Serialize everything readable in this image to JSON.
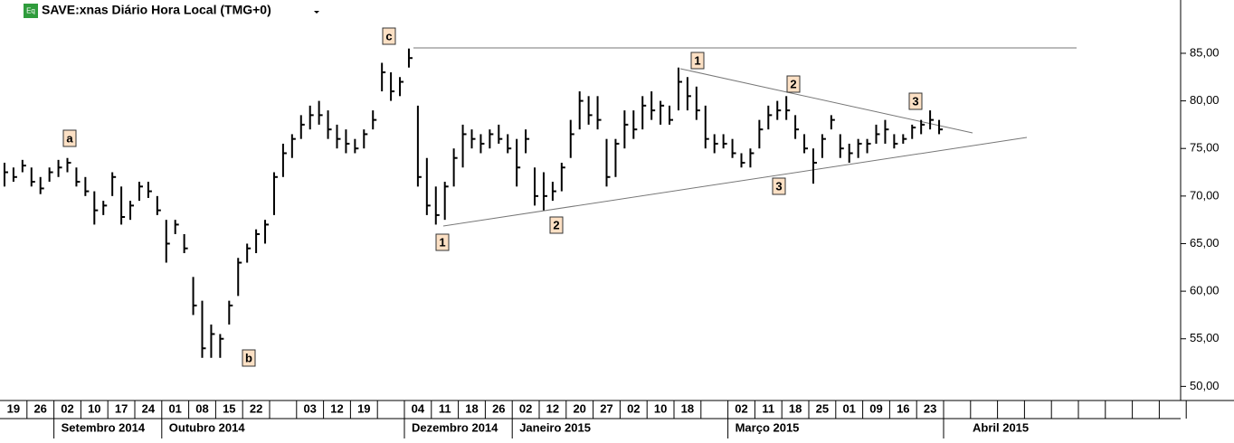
{
  "chart_data": {
    "type": "ohlc",
    "title": "SAVE:xnas Diário Hora Local (TMG+0)",
    "icon": "Eq",
    "weeks": [
      "19",
      "26",
      "02",
      "10",
      "17",
      "24",
      "01",
      "08",
      "15",
      "22",
      null,
      "03",
      "12",
      "19",
      null,
      "04",
      "11",
      "18",
      "26",
      "02",
      "12",
      "20",
      "27",
      "02",
      "10",
      "18",
      null,
      "02",
      "11",
      "18",
      "25",
      "01",
      "09",
      "16",
      "23",
      null,
      null,
      null,
      null,
      null,
      null,
      null,
      null,
      null
    ],
    "months": [
      null,
      null,
      "Setembro 2014",
      null,
      null,
      null,
      "Outubro 2014",
      null,
      null,
      null,
      null,
      null,
      null,
      null,
      null,
      "Dezembro 2014",
      null,
      null,
      null,
      "Janeiro 2015",
      null,
      null,
      null,
      null,
      null,
      null,
      null,
      "Março 2015",
      null,
      null,
      null,
      null,
      null,
      null,
      null,
      "Abril 2015",
      null,
      null,
      null,
      null,
      null,
      null,
      null,
      null
    ],
    "high": [
      73.5,
      73,
      73.8,
      73,
      72,
      73,
      73.8,
      74,
      73,
      72,
      70.5,
      69.5,
      72.5,
      71,
      69.5,
      71.5,
      71.5,
      70,
      67.5,
      67.5,
      66,
      61.5,
      59,
      56.5,
      55.5,
      59,
      63.5,
      65,
      66.5,
      67.5,
      72.5,
      75.5,
      76.5,
      78.5,
      79.5,
      80,
      79,
      77.5,
      77,
      76,
      77,
      79,
      84,
      83,
      82.5,
      85.5,
      79.5,
      74,
      71,
      71.5,
      75,
      77.5,
      77,
      76.5,
      77,
      77.5,
      76.5,
      76,
      77,
      73,
      72.5,
      71.5,
      73.5,
      78,
      81,
      80.5,
      80.5,
      76,
      76,
      79,
      79,
      80.5,
      81,
      80,
      79.5,
      83.5,
      82.5,
      81.5,
      79.5,
      76.5,
      76.5,
      76,
      74.5,
      75,
      78,
      79.5,
      80,
      80.5,
      78.5,
      76.5,
      75,
      76.5,
      78.5,
      76.5,
      75.5,
      76,
      76,
      77.5,
      78,
      76.5,
      76.5,
      77.5,
      78,
      79,
      78
    ],
    "low": [
      71,
      71.5,
      72.5,
      71,
      70.2,
      71.5,
      72,
      72.5,
      71,
      70,
      67,
      68,
      70,
      67,
      67.5,
      69.5,
      69.8,
      68,
      63,
      66,
      64,
      57.5,
      53,
      53,
      53,
      56.5,
      59.5,
      63,
      64,
      65,
      68,
      72,
      74,
      76,
      77,
      77.5,
      76,
      75,
      74.5,
      74.5,
      75,
      77,
      81,
      80,
      80.5,
      83.5,
      71,
      68,
      67,
      67.5,
      71,
      73,
      75,
      74.5,
      75,
      75.5,
      74.5,
      71,
      74.5,
      69,
      68.5,
      69.5,
      70.5,
      74,
      77,
      77.5,
      77,
      71,
      72,
      75,
      76,
      77,
      78,
      77.5,
      77.5,
      79,
      79,
      78,
      75,
      74.5,
      75,
      74,
      73,
      73,
      75,
      77,
      78,
      78,
      76,
      74.5,
      71.3,
      74,
      77,
      74,
      73.5,
      74,
      74.5,
      75.5,
      75.5,
      75,
      75.5,
      76,
      76.5,
      77,
      76.5
    ],
    "close": [
      72.5,
      72,
      73.2,
      71.5,
      70.8,
      72.5,
      73,
      73.5,
      71.5,
      70.5,
      68.5,
      69,
      72,
      67.8,
      69,
      71,
      70.5,
      68.5,
      65,
      67,
      64.5,
      58.5,
      54,
      55.5,
      55,
      58.5,
      63,
      64.5,
      66,
      67,
      72,
      74.5,
      76,
      77.5,
      78.5,
      78.5,
      77,
      76,
      75.5,
      75,
      76.5,
      78,
      83,
      81,
      82,
      84.5,
      72,
      69,
      68,
      71,
      74,
      76.5,
      76,
      75.5,
      76.5,
      76,
      75,
      73,
      76,
      70,
      70,
      70.5,
      73,
      76.5,
      80,
      78.5,
      78,
      72,
      75.5,
      77.5,
      77,
      79.5,
      79,
      79.5,
      78,
      82,
      80.5,
      79,
      76,
      75.5,
      75.5,
      74.5,
      73.5,
      74.5,
      77,
      78.5,
      79,
      79,
      77,
      75,
      73.5,
      76,
      78,
      75,
      74.5,
      75.5,
      75.5,
      76.5,
      77,
      75.5,
      76,
      77.2,
      77.5,
      78,
      77
    ],
    "annotations": [
      "a",
      "b",
      "c",
      "1",
      "2",
      "1",
      "2",
      "3",
      "3"
    ],
    "ylim": [
      48.8,
      90.6
    ],
    "yticks": [
      {
        "value": 50,
        "label": "50,00"
      },
      {
        "value": 55,
        "label": "55,00"
      },
      {
        "value": 60,
        "label": "60,00"
      },
      {
        "value": 65,
        "label": "65,00"
      },
      {
        "value": 70,
        "label": "70,00"
      },
      {
        "value": 75,
        "label": "75,00"
      },
      {
        "value": 80,
        "label": "80,00"
      },
      {
        "value": 85,
        "label": "85,00"
      }
    ],
    "color": "#000000"
  }
}
